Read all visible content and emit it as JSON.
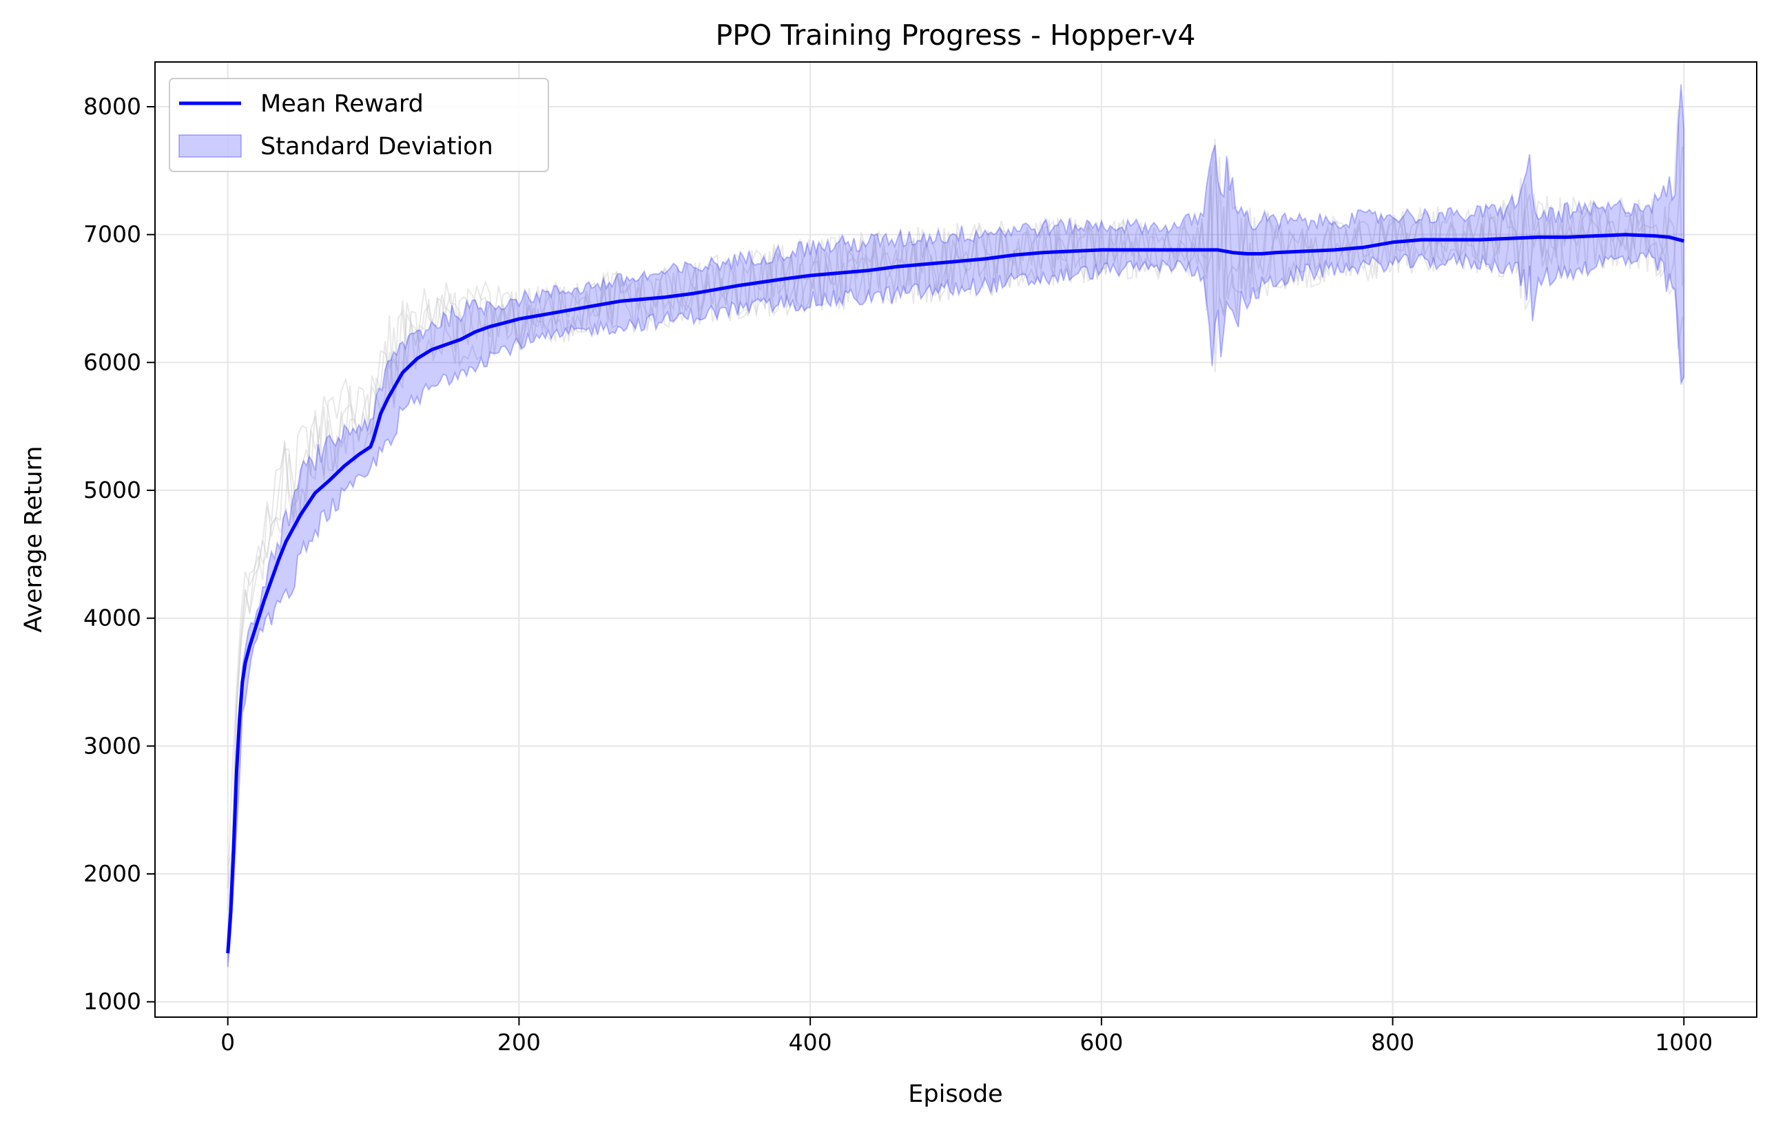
{
  "chart_data": {
    "type": "line",
    "title": "PPO Training Progress - Hopper-v4",
    "xlabel": "Episode",
    "ylabel": "Average Return",
    "xlim": [
      -50,
      1050
    ],
    "ylim": [
      880,
      8350
    ],
    "xticks": [
      0,
      200,
      400,
      600,
      800,
      1000
    ],
    "yticks": [
      1000,
      2000,
      3000,
      4000,
      5000,
      6000,
      7000,
      8000
    ],
    "grid": true,
    "legend_position": "top-left",
    "colors": {
      "mean": "#0000ff",
      "std_fill": "#0000ff",
      "background_runs": "#cccccc",
      "grid": "#e6e6e6",
      "axes": "#000000"
    },
    "series": [
      {
        "name": "Mean Reward",
        "kind": "line",
        "x": [
          0,
          2,
          4,
          6,
          8,
          10,
          12,
          15,
          20,
          25,
          30,
          35,
          40,
          50,
          60,
          70,
          80,
          90,
          98,
          100,
          105,
          110,
          120,
          130,
          140,
          150,
          160,
          170,
          180,
          190,
          200,
          220,
          250,
          270,
          300,
          320,
          350,
          380,
          400,
          420,
          440,
          460,
          480,
          500,
          520,
          540,
          560,
          580,
          600,
          620,
          640,
          660,
          680,
          690,
          700,
          710,
          720,
          740,
          760,
          780,
          800,
          820,
          840,
          860,
          880,
          900,
          920,
          940,
          960,
          980,
          990,
          1000
        ],
        "values": [
          1380,
          1700,
          2200,
          2800,
          3200,
          3500,
          3650,
          3780,
          3960,
          4140,
          4300,
          4460,
          4600,
          4810,
          4980,
          5080,
          5190,
          5280,
          5340,
          5400,
          5600,
          5720,
          5920,
          6030,
          6100,
          6140,
          6180,
          6240,
          6280,
          6310,
          6340,
          6380,
          6440,
          6480,
          6510,
          6540,
          6600,
          6650,
          6680,
          6700,
          6720,
          6750,
          6770,
          6790,
          6810,
          6840,
          6860,
          6870,
          6880,
          6880,
          6880,
          6880,
          6880,
          6860,
          6850,
          6850,
          6860,
          6870,
          6880,
          6900,
          6940,
          6960,
          6960,
          6960,
          6970,
          6980,
          6980,
          6990,
          7000,
          6990,
          6980,
          6950
        ]
      },
      {
        "name": "Standard Deviation",
        "kind": "band",
        "x": [
          0,
          2,
          5,
          10,
          15,
          20,
          30,
          40,
          50,
          60,
          70,
          80,
          90,
          98,
          100,
          110,
          120,
          140,
          160,
          180,
          200,
          250,
          300,
          350,
          400,
          450,
          500,
          550,
          600,
          650,
          670,
          676,
          680,
          690,
          700,
          720,
          750,
          800,
          850,
          880,
          894,
          896,
          900,
          950,
          980,
          995,
          997,
          1000
        ],
        "lower": [
          1280,
          1500,
          2100,
          3200,
          3650,
          3850,
          4020,
          4150,
          4450,
          4700,
          4850,
          4950,
          5050,
          5150,
          5200,
          5400,
          5600,
          5800,
          5950,
          6050,
          6150,
          6260,
          6330,
          6420,
          6480,
          6520,
          6580,
          6640,
          6720,
          6760,
          6700,
          6200,
          6220,
          6320,
          6500,
          6650,
          6720,
          6780,
          6790,
          6760,
          6600,
          6250,
          6650,
          6800,
          6800,
          6500,
          5880,
          6000
        ],
        "upper": [
          1480,
          1900,
          2500,
          3650,
          3900,
          4050,
          4450,
          4750,
          5100,
          5250,
          5350,
          5450,
          5500,
          5550,
          5600,
          5950,
          6150,
          6300,
          6400,
          6450,
          6500,
          6600,
          6700,
          6800,
          6900,
          6950,
          7000,
          7050,
          7070,
          7060,
          7150,
          7600,
          7520,
          7400,
          7100,
          7100,
          7100,
          7150,
          7150,
          7200,
          7500,
          7200,
          7150,
          7200,
          7250,
          7400,
          8020,
          7800
        ]
      }
    ]
  }
}
